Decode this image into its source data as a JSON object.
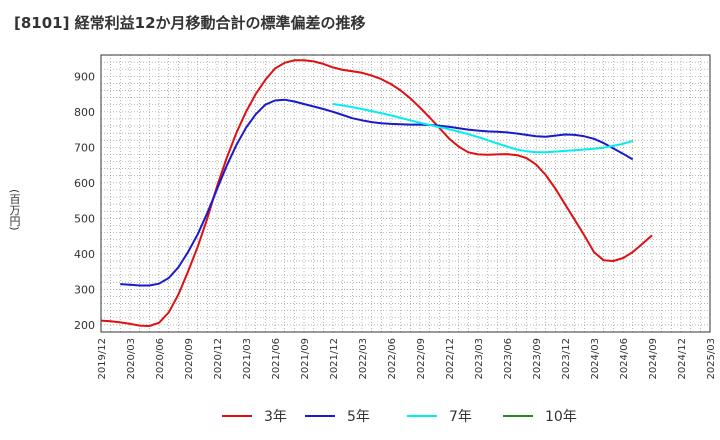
{
  "title": "[8101]  経常利益12か月移動合計の標準偏差の推移",
  "ylabel": "(百万円)",
  "chart_data": {
    "type": "line",
    "title": "[8101]  経常利益12か月移動合計の標準偏差の推移",
    "ylabel": "(百万円)",
    "xlabel": "",
    "ylim": [
      180,
      960
    ],
    "yticks": [
      200,
      300,
      400,
      500,
      600,
      700,
      800,
      900
    ],
    "xlim": [
      "2019-12",
      "2025-03"
    ],
    "xticks": [
      "2019/12",
      "2020/03",
      "2020/06",
      "2020/09",
      "2020/12",
      "2021/03",
      "2021/06",
      "2021/09",
      "2021/12",
      "2022/03",
      "2022/06",
      "2022/09",
      "2022/12",
      "2023/03",
      "2023/06",
      "2023/09",
      "2023/12",
      "2024/03",
      "2024/06",
      "2024/09",
      "2024/12",
      "2025/03"
    ],
    "grid": true,
    "legend_position": "bottom",
    "series": [
      {
        "name": "3年",
        "color": "#dd1111",
        "points": [
          [
            "2019-12",
            212
          ],
          [
            "2020-01",
            210
          ],
          [
            "2020-02",
            207
          ],
          [
            "2020-03",
            203
          ],
          [
            "2020-04",
            198
          ],
          [
            "2020-05",
            197
          ],
          [
            "2020-06",
            206
          ],
          [
            "2020-07",
            235
          ],
          [
            "2020-08",
            285
          ],
          [
            "2020-09",
            350
          ],
          [
            "2020-10",
            420
          ],
          [
            "2020-11",
            500
          ],
          [
            "2020-12",
            590
          ],
          [
            "2021-01",
            670
          ],
          [
            "2021-02",
            740
          ],
          [
            "2021-03",
            800
          ],
          [
            "2021-04",
            850
          ],
          [
            "2021-05",
            890
          ],
          [
            "2021-06",
            922
          ],
          [
            "2021-07",
            938
          ],
          [
            "2021-08",
            945
          ],
          [
            "2021-09",
            945
          ],
          [
            "2021-10",
            942
          ],
          [
            "2021-11",
            935
          ],
          [
            "2021-12",
            925
          ],
          [
            "2022-01",
            918
          ],
          [
            "2022-02",
            914
          ],
          [
            "2022-03",
            910
          ],
          [
            "2022-04",
            902
          ],
          [
            "2022-05",
            892
          ],
          [
            "2022-06",
            878
          ],
          [
            "2022-07",
            860
          ],
          [
            "2022-08",
            838
          ],
          [
            "2022-09",
            812
          ],
          [
            "2022-10",
            784
          ],
          [
            "2022-11",
            755
          ],
          [
            "2022-12",
            725
          ],
          [
            "2023-01",
            702
          ],
          [
            "2023-02",
            686
          ],
          [
            "2023-03",
            680
          ],
          [
            "2023-04",
            679
          ],
          [
            "2023-05",
            680
          ],
          [
            "2023-06",
            681
          ],
          [
            "2023-07",
            678
          ],
          [
            "2023-08",
            670
          ],
          [
            "2023-09",
            652
          ],
          [
            "2023-10",
            622
          ],
          [
            "2023-11",
            584
          ],
          [
            "2023-12",
            540
          ],
          [
            "2024-01",
            496
          ],
          [
            "2024-02",
            452
          ],
          [
            "2024-03",
            405
          ],
          [
            "2024-04",
            382
          ],
          [
            "2024-05",
            380
          ],
          [
            "2024-06",
            388
          ],
          [
            "2024-07",
            405
          ],
          [
            "2024-08",
            428
          ],
          [
            "2024-09",
            452
          ]
        ]
      },
      {
        "name": "5年",
        "color": "#1a1acc",
        "points": [
          [
            "2020-02",
            315
          ],
          [
            "2020-03",
            313
          ],
          [
            "2020-04",
            311
          ],
          [
            "2020-05",
            311
          ],
          [
            "2020-06",
            316
          ],
          [
            "2020-07",
            332
          ],
          [
            "2020-08",
            362
          ],
          [
            "2020-09",
            405
          ],
          [
            "2020-10",
            455
          ],
          [
            "2020-11",
            515
          ],
          [
            "2020-12",
            582
          ],
          [
            "2021-01",
            648
          ],
          [
            "2021-02",
            706
          ],
          [
            "2021-03",
            755
          ],
          [
            "2021-04",
            793
          ],
          [
            "2021-05",
            820
          ],
          [
            "2021-06",
            832
          ],
          [
            "2021-07",
            834
          ],
          [
            "2021-08",
            829
          ],
          [
            "2021-09",
            822
          ],
          [
            "2021-10",
            815
          ],
          [
            "2021-11",
            808
          ],
          [
            "2021-12",
            800
          ],
          [
            "2022-01",
            791
          ],
          [
            "2022-02",
            782
          ],
          [
            "2022-03",
            776
          ],
          [
            "2022-04",
            771
          ],
          [
            "2022-05",
            768
          ],
          [
            "2022-06",
            766
          ],
          [
            "2022-07",
            765
          ],
          [
            "2022-08",
            764
          ],
          [
            "2022-09",
            764
          ],
          [
            "2022-10",
            763
          ],
          [
            "2022-11",
            761
          ],
          [
            "2022-12",
            758
          ],
          [
            "2023-01",
            754
          ],
          [
            "2023-02",
            750
          ],
          [
            "2023-03",
            747
          ],
          [
            "2023-04",
            745
          ],
          [
            "2023-05",
            744
          ],
          [
            "2023-06",
            742
          ],
          [
            "2023-07",
            739
          ],
          [
            "2023-08",
            735
          ],
          [
            "2023-09",
            731
          ],
          [
            "2023-10",
            730
          ],
          [
            "2023-11",
            733
          ],
          [
            "2023-12",
            736
          ],
          [
            "2024-01",
            735
          ],
          [
            "2024-02",
            731
          ],
          [
            "2024-03",
            724
          ],
          [
            "2024-04",
            712
          ],
          [
            "2024-05",
            697
          ],
          [
            "2024-06",
            682
          ],
          [
            "2024-07",
            666
          ]
        ]
      },
      {
        "name": "7年",
        "color": "#00eeee",
        "points": [
          [
            "2021-12",
            822
          ],
          [
            "2022-01",
            818
          ],
          [
            "2022-02",
            813
          ],
          [
            "2022-03",
            808
          ],
          [
            "2022-04",
            802
          ],
          [
            "2022-05",
            796
          ],
          [
            "2022-06",
            790
          ],
          [
            "2022-07",
            783
          ],
          [
            "2022-08",
            776
          ],
          [
            "2022-09",
            769
          ],
          [
            "2022-10",
            763
          ],
          [
            "2022-11",
            757
          ],
          [
            "2022-12",
            751
          ],
          [
            "2023-01",
            744
          ],
          [
            "2023-02",
            737
          ],
          [
            "2023-03",
            729
          ],
          [
            "2023-04",
            720
          ],
          [
            "2023-05",
            711
          ],
          [
            "2023-06",
            702
          ],
          [
            "2023-07",
            694
          ],
          [
            "2023-08",
            689
          ],
          [
            "2023-09",
            686
          ],
          [
            "2023-10",
            686
          ],
          [
            "2023-11",
            688
          ],
          [
            "2023-12",
            690
          ],
          [
            "2024-01",
            692
          ],
          [
            "2024-02",
            694
          ],
          [
            "2024-03",
            696
          ],
          [
            "2024-04",
            699
          ],
          [
            "2024-05",
            704
          ],
          [
            "2024-06",
            710
          ],
          [
            "2024-07",
            718
          ]
        ]
      },
      {
        "name": "10年",
        "color": "#228822",
        "points": []
      }
    ]
  }
}
